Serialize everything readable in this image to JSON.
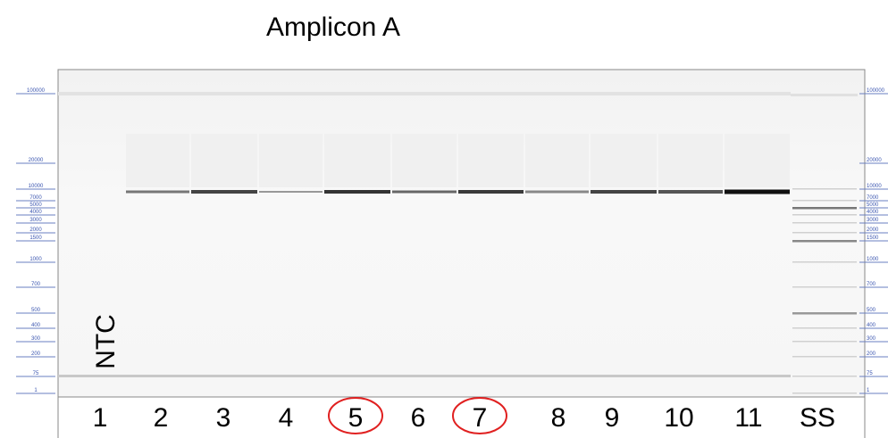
{
  "header": {
    "title": "Amplicon A"
  },
  "lanes": [
    "1",
    "2",
    "3",
    "4",
    "5",
    "6",
    "7",
    "8",
    "9",
    "10",
    "11",
    "SS"
  ],
  "lane_note": "NTC",
  "ladder_left": [
    "100000",
    "20000",
    "10000",
    "7000",
    "5000",
    "4000",
    "3000",
    "2000",
    "1500",
    "1000",
    "700",
    "500",
    "400",
    "300",
    "200",
    "75",
    "1"
  ],
  "ladder_right": [
    "100000",
    "20000",
    "10000",
    "7000",
    "5000",
    "4000",
    "3000",
    "2000",
    "1500",
    "1000",
    "700",
    "500",
    "400",
    "300",
    "200",
    "75",
    "1"
  ]
}
